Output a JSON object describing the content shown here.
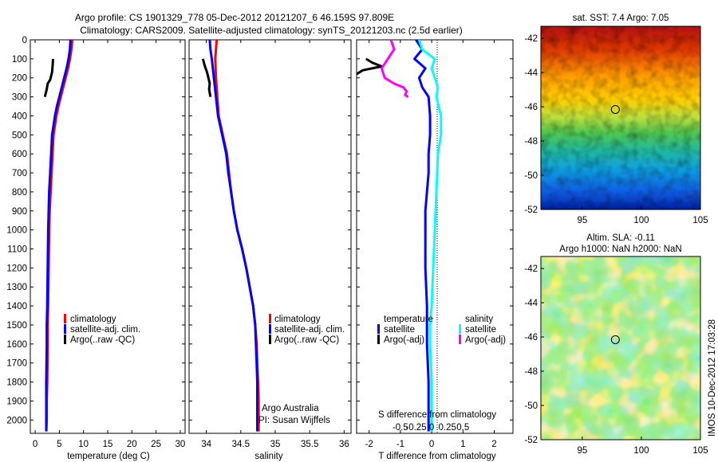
{
  "header": {
    "title_line1": "Argo profile: CS 1901329_778 05-Dec-2012 20121207_6 46.159S 97.809E",
    "title_line2": "Climatology: CARS2009. Satellite-adjusted climatology: synTS_20121203.nc (2.5d earlier)"
  },
  "side_note": "IMOS 10-Dec-2012 17:03:28",
  "colors": {
    "climatology": "#ff0000",
    "satellite": "#0000ff",
    "argo": "#000000",
    "sal_satellite": "#00ffff",
    "sal_argo": "#ff00ff"
  },
  "chart_data": [
    {
      "type": "line",
      "id": "temperature",
      "xlabel": "temperature (deg C)",
      "xlim": [
        -1,
        31
      ],
      "xticks": [
        0,
        5,
        10,
        15,
        20,
        25,
        30
      ],
      "ylim": [
        0,
        2070
      ],
      "yticks": [
        0,
        100,
        200,
        300,
        400,
        500,
        600,
        700,
        800,
        900,
        1000,
        1100,
        1200,
        1300,
        1400,
        1500,
        1600,
        1700,
        1800,
        1900,
        2000
      ],
      "y_reversed": true,
      "legend": [
        "climatology",
        "satellite-adj. clim.",
        "Argo(..raw -QC)"
      ],
      "series": [
        {
          "name": "climatology",
          "color": "#ff0000",
          "x": [
            7.7,
            7.5,
            7.2,
            6.8,
            6.3,
            5.8,
            5.3,
            4.8,
            4.4,
            4.1,
            3.8,
            3.6,
            3.4,
            3.2,
            3.0,
            2.9,
            2.8,
            2.7,
            2.6,
            2.6,
            2.5,
            2.4,
            2.4,
            2.3
          ],
          "y": [
            0,
            50,
            100,
            150,
            200,
            250,
            300,
            350,
            400,
            450,
            500,
            600,
            700,
            800,
            900,
            1000,
            1200,
            1400,
            1500,
            1600,
            1800,
            1900,
            2000,
            2060
          ]
        },
        {
          "name": "satellite-adj. clim.",
          "color": "#0000ff",
          "x": [
            7.3,
            7.2,
            6.9,
            6.5,
            6.0,
            5.5,
            5.0,
            4.5,
            4.1,
            3.8,
            3.5,
            3.3,
            3.1,
            2.9,
            2.8,
            2.7,
            2.6,
            2.5,
            2.4,
            2.4,
            2.3,
            2.3,
            2.3,
            2.3
          ],
          "y": [
            0,
            50,
            100,
            150,
            200,
            250,
            300,
            350,
            400,
            450,
            500,
            600,
            700,
            800,
            900,
            1000,
            1200,
            1400,
            1500,
            1600,
            1800,
            1900,
            2000,
            2060
          ]
        },
        {
          "name": "Argo(..raw -QC)",
          "color": "#000000",
          "x": [
            3.7,
            3.6,
            3.5,
            3.3,
            3.1,
            2.6,
            2.4,
            2.0
          ],
          "y": [
            100,
            140,
            170,
            190,
            210,
            230,
            260,
            300
          ]
        }
      ]
    },
    {
      "type": "line",
      "id": "salinity",
      "xlabel": "salinity",
      "xlim": [
        33.75,
        36.1
      ],
      "xticks": [
        34,
        34.5,
        35,
        35.5,
        36
      ],
      "ylim": [
        0,
        2070
      ],
      "y_reversed": true,
      "legend": [
        "climatology",
        "satellite-adj. clim.",
        "Argo(..raw -QC)"
      ],
      "annotations": [
        "Argo Australia",
        "PI: Susan Wijffels"
      ],
      "series": [
        {
          "name": "climatology",
          "color": "#ff0000",
          "x": [
            34.15,
            34.14,
            34.13,
            34.14,
            34.16,
            34.18,
            34.21,
            34.24,
            34.27,
            34.3,
            34.33,
            34.36,
            34.4,
            34.45,
            34.52,
            34.58,
            34.63,
            34.68,
            34.71,
            34.73,
            34.74,
            34.75,
            34.76,
            34.76
          ],
          "y": [
            0,
            50,
            100,
            200,
            300,
            400,
            450,
            500,
            550,
            600,
            700,
            800,
            900,
            1000,
            1100,
            1200,
            1300,
            1400,
            1500,
            1600,
            1700,
            1800,
            1900,
            2060
          ]
        },
        {
          "name": "satellite-adj. clim.",
          "color": "#0000ff",
          "x": [
            34.05,
            34.06,
            34.08,
            34.11,
            34.14,
            34.17,
            34.2,
            34.23,
            34.26,
            34.29,
            34.32,
            34.36,
            34.4,
            34.45,
            34.52,
            34.58,
            34.63,
            34.68,
            34.71,
            34.72,
            34.73,
            34.74,
            34.74,
            34.74
          ],
          "y": [
            0,
            50,
            100,
            200,
            300,
            400,
            450,
            500,
            550,
            600,
            700,
            800,
            900,
            1000,
            1100,
            1200,
            1300,
            1400,
            1500,
            1600,
            1700,
            1800,
            1900,
            2060
          ]
        },
        {
          "name": "Argo(..raw -QC)",
          "color": "#000000",
          "x": [
            33.95,
            33.98,
            34.01,
            34.03,
            34.05,
            34.04,
            34.06
          ],
          "y": [
            100,
            140,
            170,
            200,
            230,
            260,
            300
          ]
        }
      ]
    },
    {
      "type": "line",
      "id": "difference",
      "xlabel": "T difference from climatology",
      "xlabel_top": "S difference from climatology",
      "xlim": [
        -2.4,
        2.6
      ],
      "xticks": [
        -2,
        -1,
        0,
        1,
        2
      ],
      "xticks_top_labels": [
        "-0.5",
        "-0.25",
        "0",
        "0.25",
        "0.5"
      ],
      "xticks_top_pos": [
        -2,
        -1,
        0,
        1,
        2
      ],
      "ylim": [
        0,
        2070
      ],
      "y_reversed": true,
      "legend_temperature_title": "temperature",
      "legend_salinity_title": "salinity",
      "legend": [
        "satellite",
        "Argo(-adj)",
        "satellite",
        "Argo(-adj)"
      ],
      "series": [
        {
          "name": "temperature satellite",
          "color": "#0000ff",
          "x": [
            -0.5,
            -0.3,
            -0.55,
            -0.2,
            -0.4,
            -0.3,
            -0.1,
            -0.05,
            -0.05,
            -0.1,
            -0.1,
            -0.15,
            -0.2,
            -0.2,
            -0.2,
            -0.15,
            -0.15,
            -0.15,
            -0.1,
            -0.1,
            -0.1
          ],
          "y": [
            0,
            50,
            100,
            150,
            200,
            250,
            300,
            400,
            500,
            600,
            700,
            800,
            900,
            1000,
            1200,
            1400,
            1500,
            1600,
            1800,
            1900,
            2060
          ]
        },
        {
          "name": "temperature Argo(-adj)",
          "color": "#000000",
          "x": [
            -2.1,
            -1.9,
            -1.6,
            -2.2,
            -2.4,
            -3.0,
            -3.5,
            -4.4,
            -3.9
          ],
          "y": [
            100,
            120,
            140,
            160,
            180,
            200,
            230,
            260,
            300
          ]
        },
        {
          "name": "salinity satellite",
          "color": "#00ffff",
          "x": [
            -0.4,
            -0.3,
            0.1,
            0.0,
            0.1,
            0.2,
            0.15,
            0.3,
            0.3,
            0.2,
            0.15,
            0.1,
            0.05,
            0.0,
            -0.05,
            -0.05,
            0.0,
            0.0,
            0.0
          ],
          "y": [
            0,
            50,
            100,
            150,
            200,
            250,
            300,
            400,
            500,
            600,
            800,
            1000,
            1200,
            1400,
            1500,
            1600,
            1800,
            1900,
            2060
          ]
        },
        {
          "name": "salinity Argo(-adj)",
          "color": "#ff00ff",
          "x": [
            -1.3,
            -1.2,
            -1.4,
            -1.6,
            -1.5,
            -1.2,
            -0.9,
            -0.8,
            -0.85,
            -0.75
          ],
          "y": [
            0,
            50,
            100,
            150,
            200,
            230,
            250,
            270,
            290,
            300
          ]
        }
      ]
    },
    {
      "type": "heatmap",
      "id": "sst_map",
      "title": "sat. SST: 7.4  Argo: 7.05",
      "xlim": [
        91.5,
        105
      ],
      "xticks": [
        95,
        100,
        105
      ],
      "ylim": [
        -52,
        -41.3
      ],
      "yticks": [
        -42,
        -44,
        -46,
        -48,
        -50,
        -52
      ],
      "marker": {
        "lon": 97.8,
        "lat": -46.16
      },
      "colorscale": "jet"
    },
    {
      "type": "heatmap",
      "id": "sla_map",
      "title": "Altim. SLA: -0.11",
      "subtitle": "Argo h1000: NaN  h2000: NaN",
      "xlim": [
        91.5,
        105
      ],
      "xticks": [
        95,
        100,
        105
      ],
      "ylim": [
        -52,
        -41.3
      ],
      "yticks": [
        -42,
        -44,
        -46,
        -48,
        -50,
        -52
      ],
      "marker": {
        "lon": 97.8,
        "lat": -46.16
      },
      "colorscale": "jet"
    }
  ]
}
